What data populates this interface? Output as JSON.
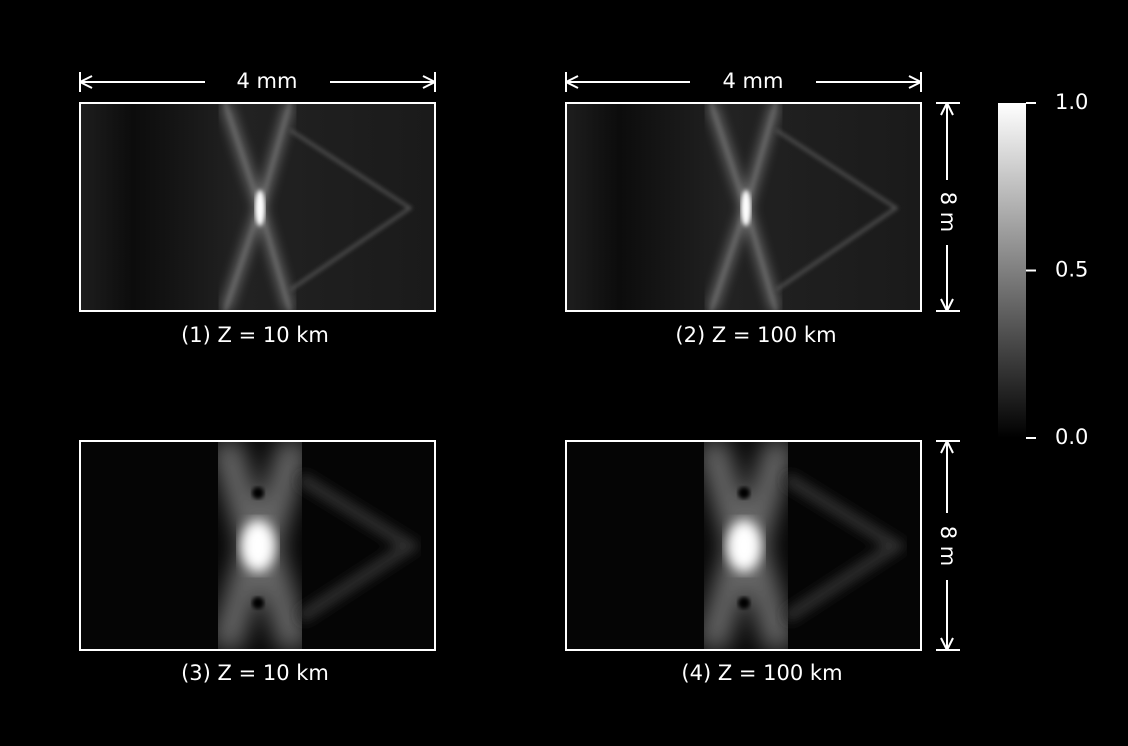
{
  "panels": [
    {
      "caption": "(1) Z = 10 km",
      "width_label": "4 mm"
    },
    {
      "caption": "(2) Z = 100 km",
      "width_label": "4 mm",
      "height_label": "8 m"
    },
    {
      "caption": "(3) Z = 10 km"
    },
    {
      "caption": "(4) Z = 100 km",
      "height_label": "8 m"
    }
  ],
  "colorbar": {
    "lim": [
      0,
      1
    ],
    "ticks": [
      {
        "value": 0,
        "label": "0.0"
      },
      {
        "value": 0.5,
        "label": "0.5"
      },
      {
        "value": 1,
        "label": "1.0"
      }
    ]
  }
}
